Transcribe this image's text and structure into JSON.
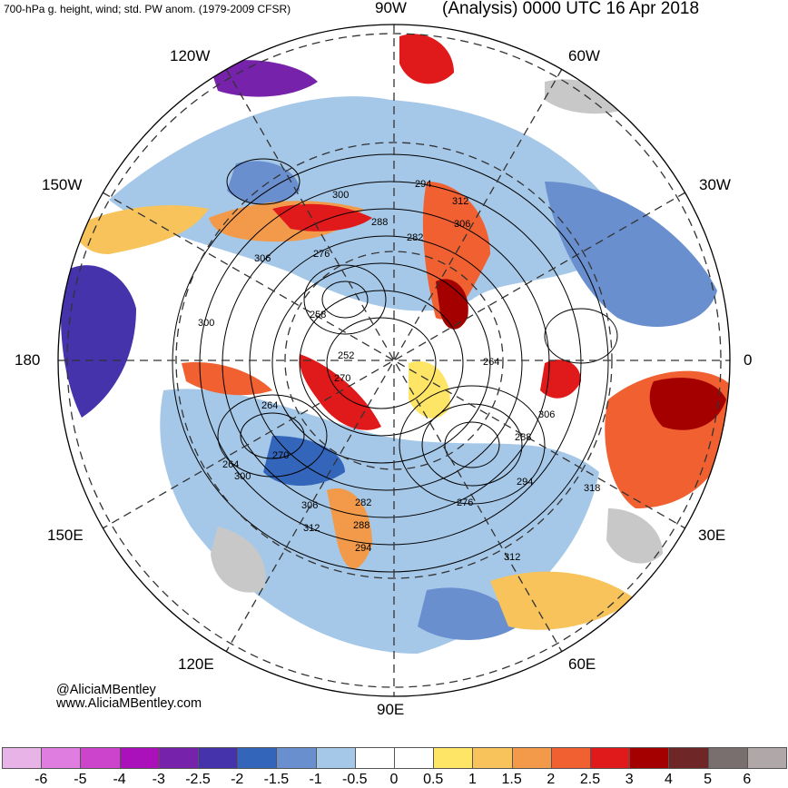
{
  "header": {
    "left_title": "700-hPa g. height, wind; std. PW anom. (1979-2009 CFSR)",
    "right_title": "(Analysis) 0000 UTC 16 Apr 2018"
  },
  "longitude_labels": {
    "w90": "90W",
    "w60": "60W",
    "w30": "30W",
    "zero": "0",
    "e30": "30E",
    "e60": "60E",
    "e90": "90E",
    "e120": "120E",
    "e150": "150E",
    "d180": "180",
    "w150": "150W",
    "w120": "120W"
  },
  "height_contour_labels": [
    "294",
    "300",
    "312",
    "306",
    "288",
    "282",
    "276",
    "306",
    "300",
    "258",
    "252",
    "270",
    "264",
    "264",
    "306",
    "288",
    "264",
    "270",
    "300",
    "306",
    "282",
    "276",
    "294",
    "288",
    "312",
    "294",
    "318",
    "312"
  ],
  "credits": {
    "handle": "@AliciaMBentley",
    "website": "www.AliciaMBentley.com"
  },
  "colorbar": {
    "ticks": [
      "-6",
      "-5",
      "-4",
      "-3",
      "-2.5",
      "-2",
      "-1.5",
      "-1",
      "-0.5",
      "0",
      "0.5",
      "1",
      "1.5",
      "2",
      "2.5",
      "3",
      "4",
      "5",
      "6"
    ],
    "colors": [
      "#e8b4e8",
      "#e07de0",
      "#cc44cc",
      "#aa11bb",
      "#7722aa",
      "#4433aa",
      "#3366bb",
      "#6a8fcf",
      "#a6c8e8",
      "#ffffff",
      "#ffffff",
      "#ffe566",
      "#f7c35a",
      "#f29a4a",
      "#f06030",
      "#e01a1a",
      "#a50000",
      "#6e2626",
      "#7a6f6f",
      "#b0a8a8"
    ]
  }
}
